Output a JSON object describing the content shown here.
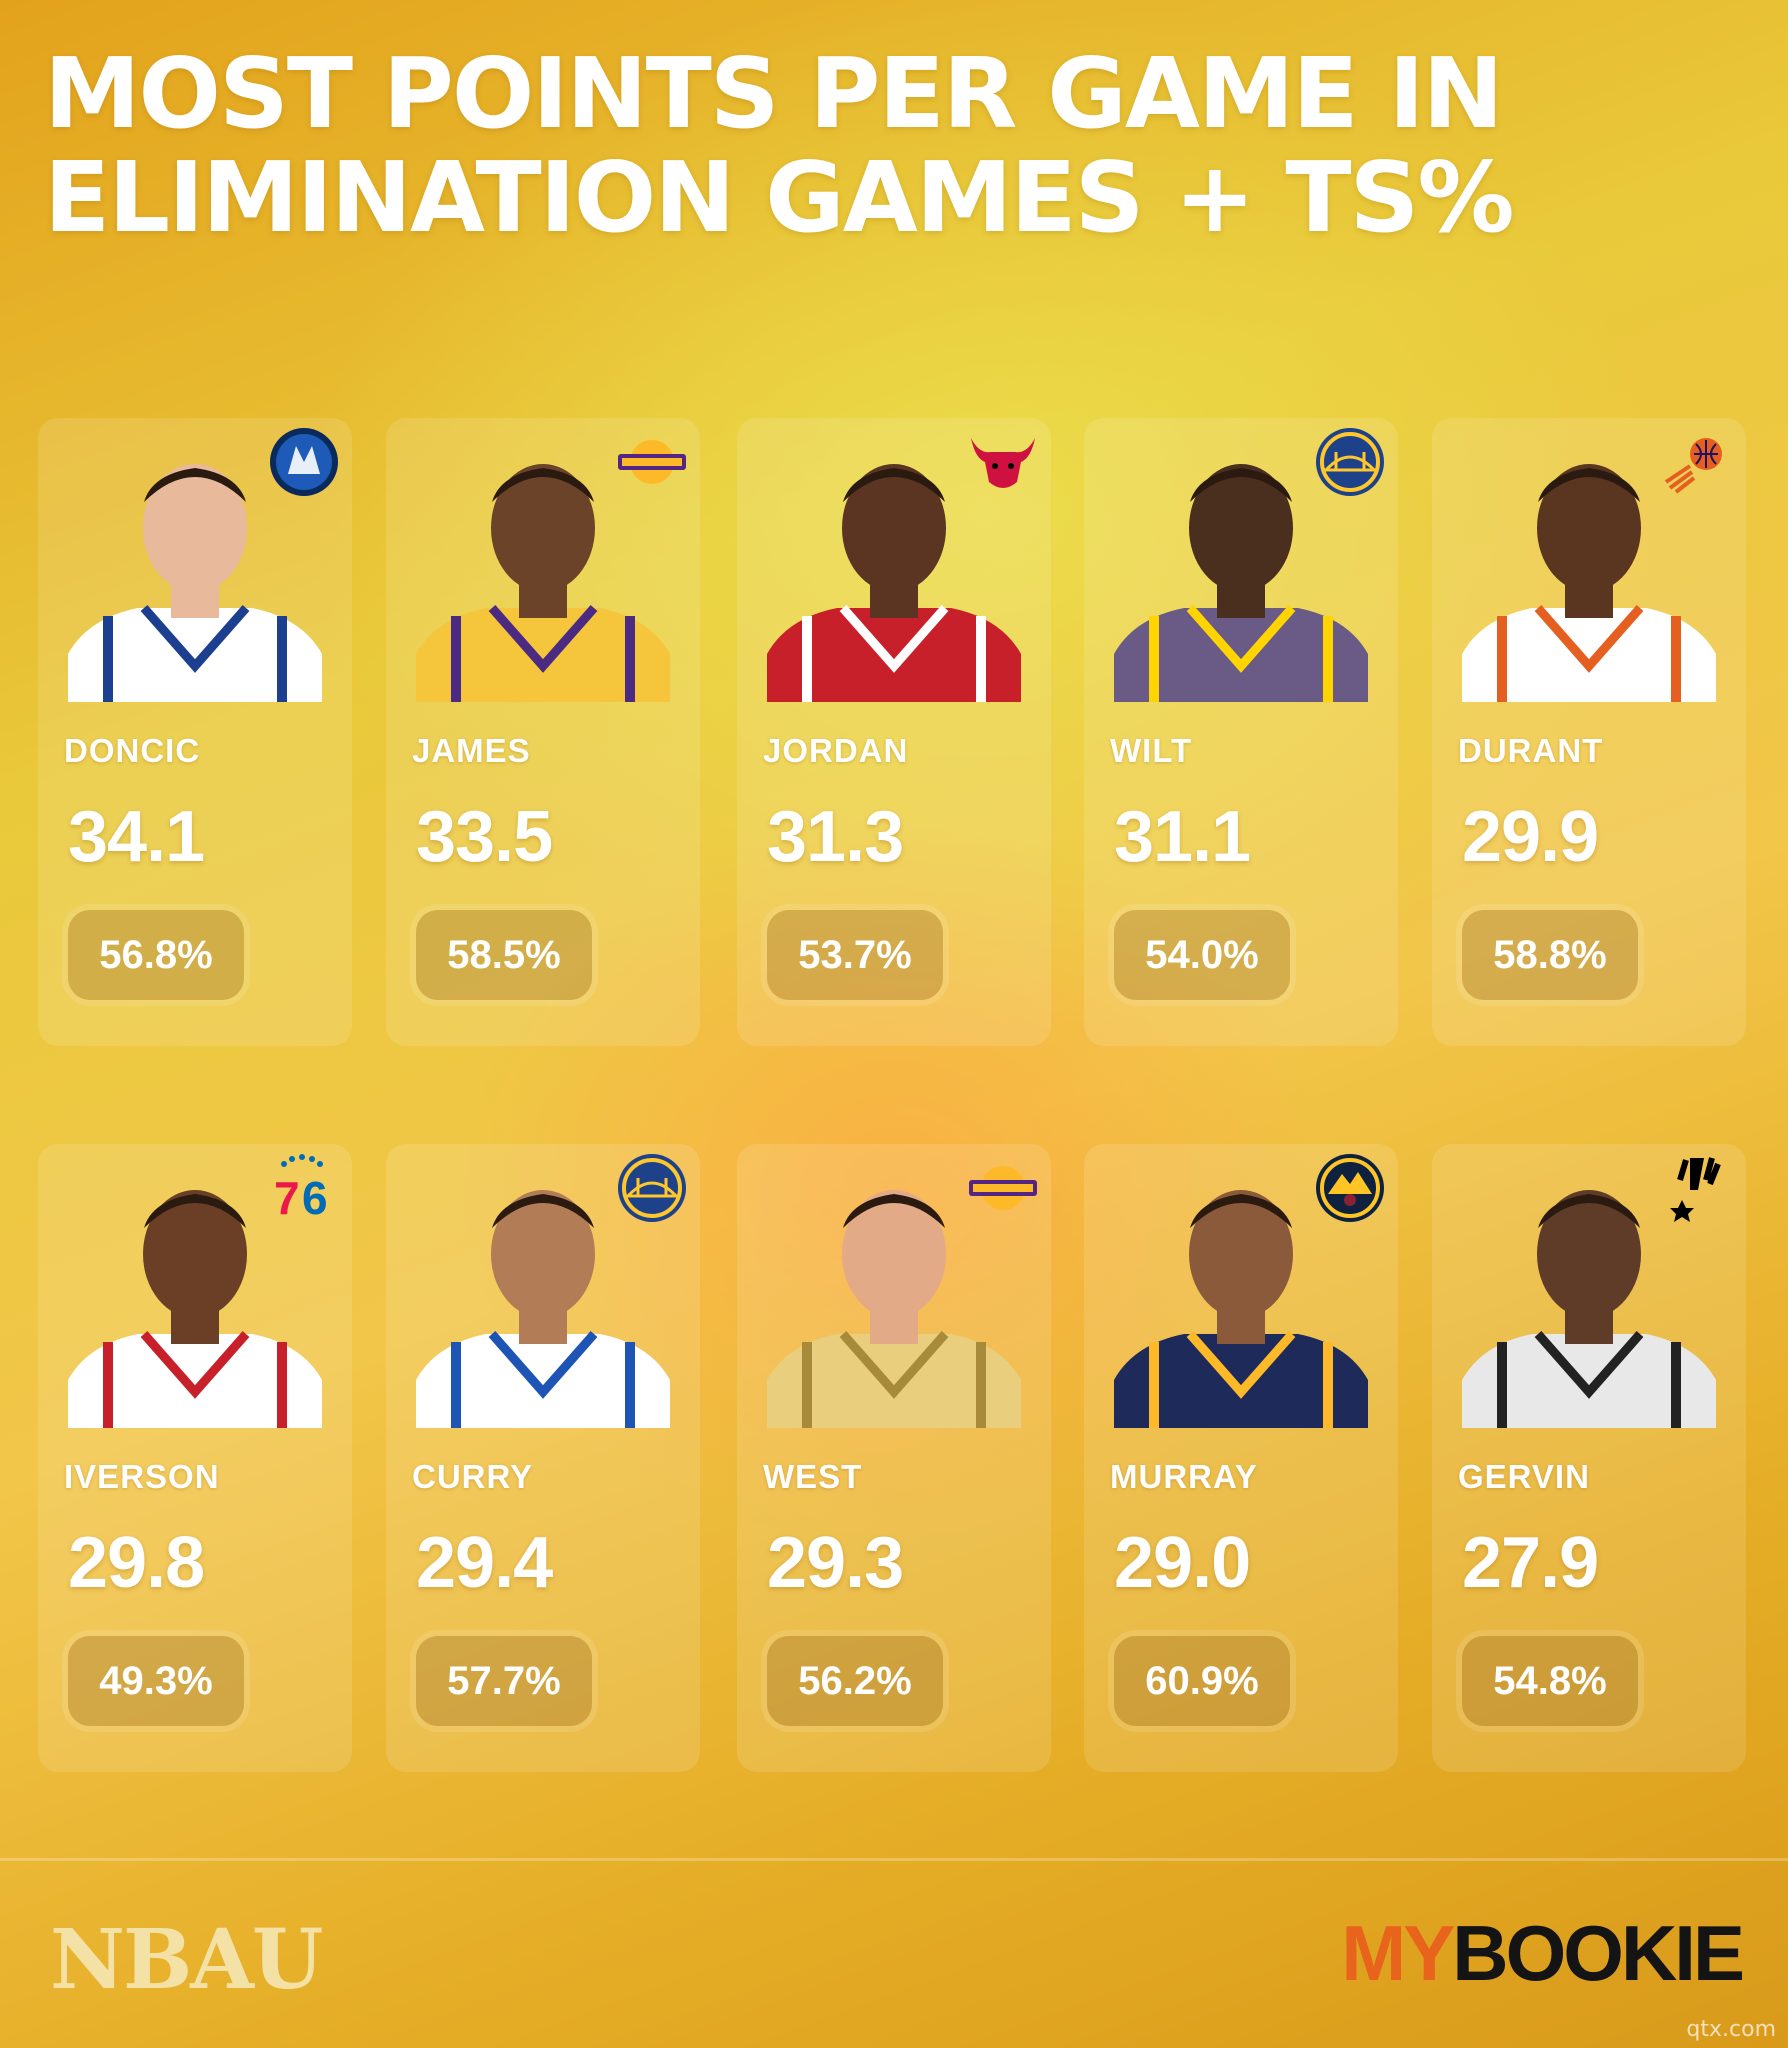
{
  "title": "MOST POINTS PER GAME IN ELIMINATION GAMES + TS%",
  "players": [
    {
      "name": "DONCIC",
      "ppg": "34.1",
      "ts": "56.8%",
      "team_logo": "mavericks-logo-icon",
      "jersey_color": "#ffffff",
      "trim_color": "#1d3f8f",
      "skin": "#e8b99a"
    },
    {
      "name": "JAMES",
      "ppg": "33.5",
      "ts": "58.5%",
      "team_logo": "lakers-logo-icon",
      "jersey_color": "#f5c63b",
      "trim_color": "#4a2a82",
      "skin": "#6b4329"
    },
    {
      "name": "JORDAN",
      "ppg": "31.3",
      "ts": "53.7%",
      "team_logo": "bulls-logo-icon",
      "jersey_color": "#c8202a",
      "trim_color": "#ffffff",
      "skin": "#5b3522"
    },
    {
      "name": "WILT",
      "ppg": "31.1",
      "ts": "54.0%",
      "team_logo": "warriors-logo-icon",
      "jersey_color": "#6a5b86",
      "trim_color": "#ffd400",
      "skin": "#4a2e1e"
    },
    {
      "name": "DURANT",
      "ppg": "29.9",
      "ts": "58.8%",
      "team_logo": "suns-logo-icon",
      "jersey_color": "#ffffff",
      "trim_color": "#e56020",
      "skin": "#5a3621"
    },
    {
      "name": "IVERSON",
      "ppg": "29.8",
      "ts": "49.3%",
      "team_logo": "76ers-logo-icon",
      "jersey_color": "#ffffff",
      "trim_color": "#c8202a",
      "skin": "#6a3f25"
    },
    {
      "name": "CURRY",
      "ppg": "29.4",
      "ts": "57.7%",
      "team_logo": "warriors-logo-icon",
      "jersey_color": "#ffffff",
      "trim_color": "#1d54b5",
      "skin": "#b27d56"
    },
    {
      "name": "WEST",
      "ppg": "29.3",
      "ts": "56.2%",
      "team_logo": "lakers-logo-icon",
      "jersey_color": "#e9cf7d",
      "trim_color": "#a78a3a",
      "skin": "#e2aa86"
    },
    {
      "name": "MURRAY",
      "ppg": "29.0",
      "ts": "60.9%",
      "team_logo": "nuggets-logo-icon",
      "jersey_color": "#1e2a5a",
      "trim_color": "#fdb927",
      "skin": "#8a5a3a"
    },
    {
      "name": "GERVIN",
      "ppg": "27.9",
      "ts": "54.8%",
      "team_logo": "spurs-logo-icon",
      "jersey_color": "#e8e8e8",
      "trim_color": "#222222",
      "skin": "#5e3c28"
    }
  ],
  "footer": {
    "left_brand": "NBAU",
    "right_brand_my": "MY",
    "right_brand_bookie": "BOOKIE",
    "watermark": "qtx.com"
  }
}
